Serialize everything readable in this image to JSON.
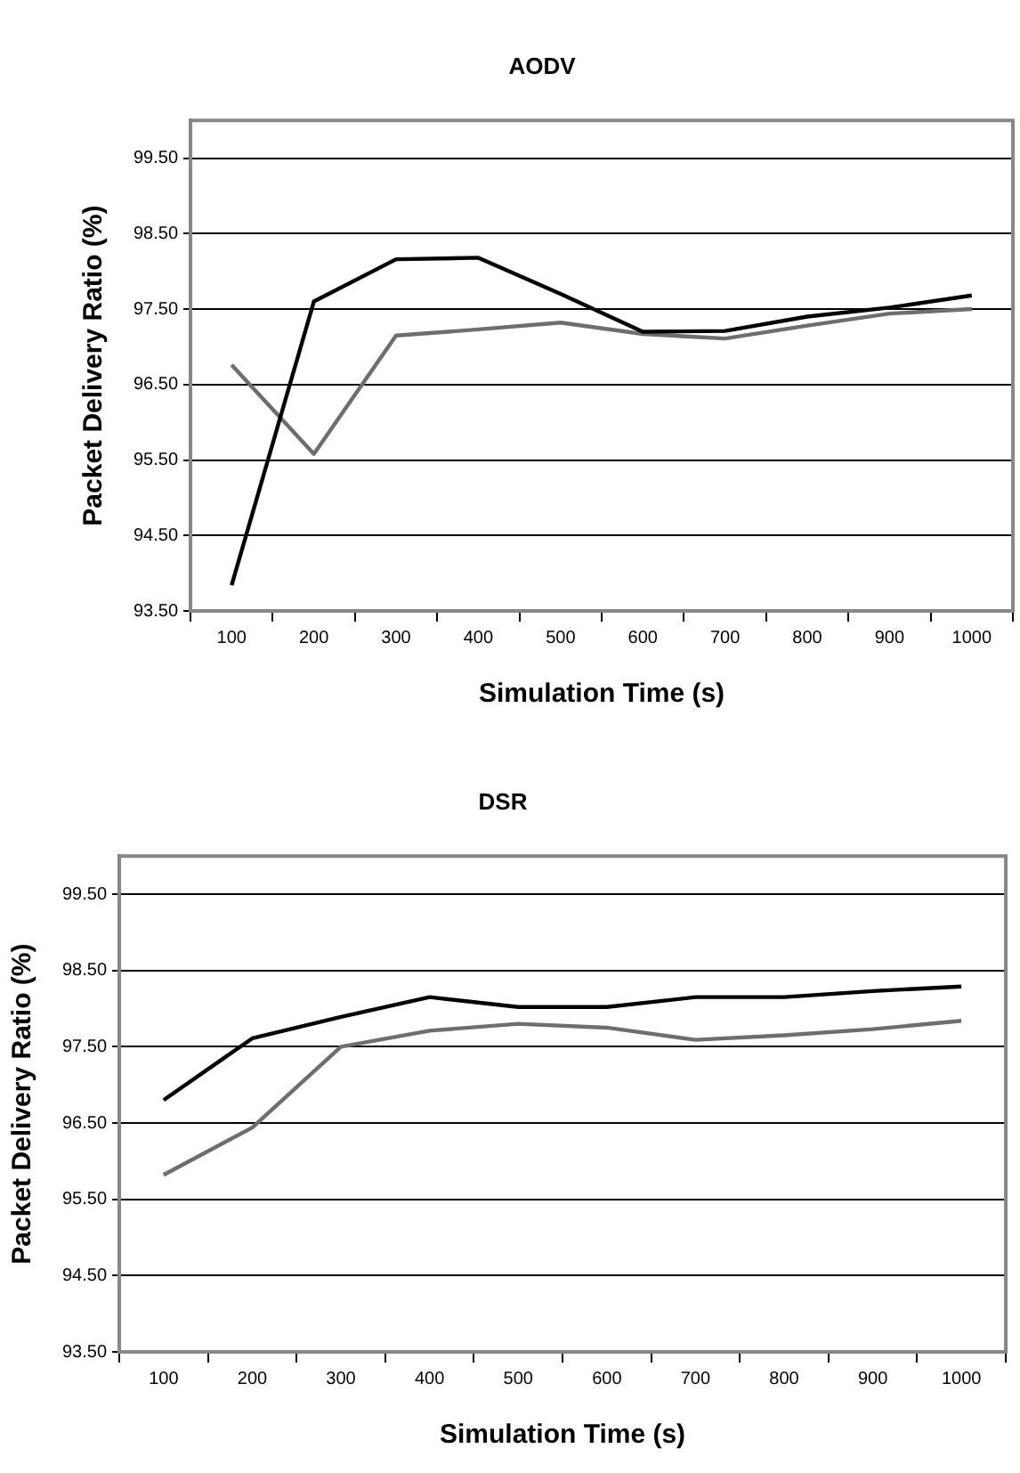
{
  "chart_data": [
    {
      "type": "line",
      "title": "AODV",
      "xlabel": "Simulation Time (s)",
      "ylabel": "Packet Delivery Ratio (%)",
      "categories": [
        "100",
        "200",
        "300",
        "400",
        "500",
        "600",
        "700",
        "800",
        "900",
        "1000"
      ],
      "series": [
        {
          "color": "#000000",
          "values": [
            93.84,
            97.6,
            98.16,
            98.18,
            97.7,
            97.2,
            97.21,
            97.4,
            97.52,
            97.68
          ]
        },
        {
          "color": "#6e6e6e",
          "values": [
            96.76,
            95.58,
            97.15,
            97.23,
            97.32,
            97.17,
            97.11,
            97.28,
            97.44,
            97.5
          ]
        }
      ],
      "ylim": [
        93.5,
        100
      ],
      "yticks": [
        {
          "value": 93.5,
          "label": "93.50"
        },
        {
          "value": 94.5,
          "label": "94.50"
        },
        {
          "value": 95.5,
          "label": "95.50"
        },
        {
          "value": 96.5,
          "label": "96.50"
        },
        {
          "value": 97.5,
          "label": "97.50"
        },
        {
          "value": 98.5,
          "label": "98.50"
        },
        {
          "value": 99.5,
          "label": "99.50"
        }
      ],
      "grid": "y",
      "legend": false,
      "marker": "none",
      "line_style": "solid"
    },
    {
      "type": "line",
      "title": "DSR",
      "xlabel": "Simulation Time (s)",
      "ylabel": "Packet Delivery Ratio (%)",
      "categories": [
        "100",
        "200",
        "300",
        "400",
        "500",
        "600",
        "700",
        "800",
        "900",
        "1000"
      ],
      "series": [
        {
          "color": "#000000",
          "values": [
            96.8,
            97.61,
            97.89,
            98.15,
            98.02,
            98.02,
            98.15,
            98.15,
            98.23,
            98.29
          ]
        },
        {
          "color": "#6e6e6e",
          "values": [
            95.82,
            96.44,
            97.5,
            97.71,
            97.8,
            97.75,
            97.59,
            97.65,
            97.73,
            97.84
          ]
        }
      ],
      "ylim": [
        93.5,
        100
      ],
      "yticks": [
        {
          "value": 93.5,
          "label": "93.50"
        },
        {
          "value": 94.5,
          "label": "94.50"
        },
        {
          "value": 95.5,
          "label": "95.50"
        },
        {
          "value": 96.5,
          "label": "96.50"
        },
        {
          "value": 97.5,
          "label": "97.50"
        },
        {
          "value": 98.5,
          "label": "98.50"
        },
        {
          "value": 99.5,
          "label": "99.50"
        }
      ],
      "grid": "y",
      "legend": false,
      "marker": "none",
      "line_style": "solid"
    }
  ]
}
